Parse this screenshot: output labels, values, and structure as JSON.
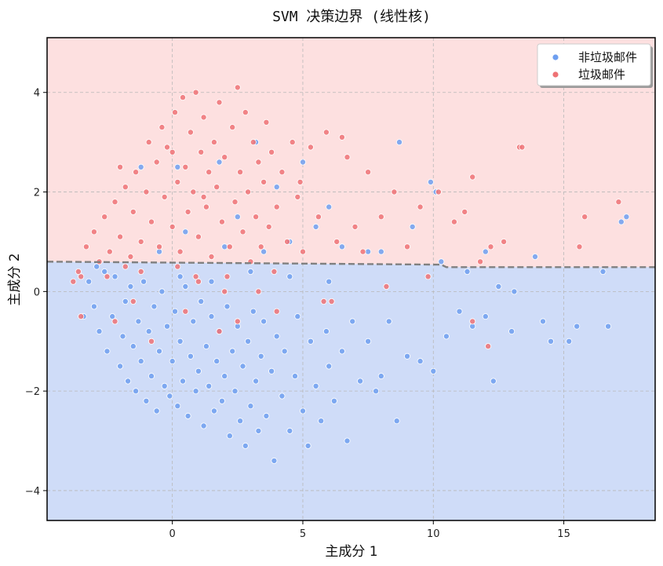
{
  "chart_data": {
    "type": "scatter",
    "title": "SVM 决策边界 (线性核)",
    "xlabel": "主成分 1",
    "ylabel": "主成分 2",
    "xlim": [
      -4.8,
      18.5
    ],
    "ylim": [
      -4.6,
      5.1
    ],
    "xticks": [
      0,
      5,
      10,
      15
    ],
    "yticks": [
      -4,
      -2,
      0,
      2,
      4
    ],
    "grid": true,
    "legend_position": "top-right",
    "regions": [
      {
        "label": "非垃圾邮件",
        "color": "#cfdcf8",
        "side": "below"
      },
      {
        "label": "垃圾邮件",
        "color": "#fde0e0",
        "side": "above"
      }
    ],
    "boundary": {
      "style": "dashed",
      "color": "#808080",
      "points": [
        [
          -4.8,
          0.6
        ],
        [
          10.3,
          0.54
        ],
        [
          10.5,
          0.49
        ],
        [
          18.5,
          0.49
        ]
      ]
    },
    "series": [
      {
        "name": "非垃圾邮件",
        "color": "#6e9ff0",
        "points": [
          [
            -3.2,
            0.2
          ],
          [
            -3.0,
            -0.3
          ],
          [
            -2.8,
            -0.8
          ],
          [
            -2.6,
            0.4
          ],
          [
            -2.5,
            -1.2
          ],
          [
            -2.3,
            -0.5
          ],
          [
            -2.2,
            0.3
          ],
          [
            -2.0,
            -1.5
          ],
          [
            -1.9,
            -0.9
          ],
          [
            -1.8,
            -0.2
          ],
          [
            -1.7,
            -1.8
          ],
          [
            -1.6,
            0.1
          ],
          [
            -1.5,
            -1.1
          ],
          [
            -1.4,
            -2.0
          ],
          [
            -1.3,
            -0.6
          ],
          [
            -1.2,
            -1.4
          ],
          [
            -1.1,
            0.2
          ],
          [
            -1.0,
            -2.2
          ],
          [
            -0.9,
            -0.8
          ],
          [
            -0.8,
            -1.7
          ],
          [
            -0.7,
            -0.3
          ],
          [
            -0.6,
            -2.4
          ],
          [
            -0.5,
            -1.2
          ],
          [
            -0.4,
            0.0
          ],
          [
            -0.3,
            -1.9
          ],
          [
            -0.2,
            -0.7
          ],
          [
            -0.1,
            -2.1
          ],
          [
            0.0,
            -1.4
          ],
          [
            0.1,
            -0.4
          ],
          [
            0.2,
            -2.3
          ],
          [
            0.3,
            -1.0
          ],
          [
            0.4,
            -1.8
          ],
          [
            0.5,
            0.1
          ],
          [
            0.6,
            -2.5
          ],
          [
            0.7,
            -1.3
          ],
          [
            0.8,
            -0.6
          ],
          [
            0.9,
            -2.0
          ],
          [
            1.0,
            -1.6
          ],
          [
            1.1,
            -0.2
          ],
          [
            1.2,
            -2.7
          ],
          [
            1.3,
            -1.1
          ],
          [
            1.4,
            -1.9
          ],
          [
            1.5,
            -0.5
          ],
          [
            1.6,
            -2.4
          ],
          [
            1.7,
            -1.4
          ],
          [
            1.8,
            -0.8
          ],
          [
            1.9,
            -2.2
          ],
          [
            2.0,
            -1.7
          ],
          [
            2.1,
            -0.3
          ],
          [
            2.2,
            -2.9
          ],
          [
            2.3,
            -1.2
          ],
          [
            2.4,
            -2.0
          ],
          [
            2.5,
            -0.7
          ],
          [
            2.6,
            -2.6
          ],
          [
            2.7,
            -1.5
          ],
          [
            2.8,
            -3.1
          ],
          [
            2.9,
            -1.0
          ],
          [
            3.0,
            -2.3
          ],
          [
            3.1,
            -0.4
          ],
          [
            3.2,
            -1.8
          ],
          [
            3.3,
            -2.8
          ],
          [
            3.4,
            -1.3
          ],
          [
            3.5,
            -0.6
          ],
          [
            3.6,
            -2.5
          ],
          [
            3.8,
            -1.6
          ],
          [
            3.9,
            -3.4
          ],
          [
            4.0,
            -0.9
          ],
          [
            4.2,
            -2.1
          ],
          [
            4.3,
            -1.2
          ],
          [
            4.5,
            -2.8
          ],
          [
            4.7,
            -1.7
          ],
          [
            4.8,
            -0.5
          ],
          [
            5.0,
            -2.4
          ],
          [
            5.2,
            -3.1
          ],
          [
            5.3,
            -1.0
          ],
          [
            5.5,
            -1.9
          ],
          [
            5.7,
            -2.6
          ],
          [
            5.9,
            -0.8
          ],
          [
            6.0,
            -1.5
          ],
          [
            6.2,
            -2.2
          ],
          [
            6.5,
            -1.2
          ],
          [
            6.7,
            -3.0
          ],
          [
            6.9,
            -0.6
          ],
          [
            7.2,
            -1.8
          ],
          [
            7.5,
            -1.0
          ],
          [
            7.8,
            -2.0
          ],
          [
            8.0,
            -1.7
          ],
          [
            8.3,
            -0.6
          ],
          [
            8.6,
            -2.6
          ],
          [
            9.0,
            -1.3
          ],
          [
            9.5,
            -1.4
          ],
          [
            10.0,
            -1.6
          ],
          [
            10.5,
            -0.9
          ],
          [
            11.0,
            -0.4
          ],
          [
            11.5,
            -0.7
          ],
          [
            12.0,
            -0.5
          ],
          [
            12.3,
            -1.8
          ],
          [
            13.0,
            -0.8
          ],
          [
            14.2,
            -0.6
          ],
          [
            14.5,
            -1.0
          ],
          [
            15.2,
            -1.0
          ],
          [
            15.5,
            -0.7
          ],
          [
            16.7,
            -0.7
          ],
          [
            0.3,
            0.3
          ],
          [
            1.5,
            0.2
          ],
          [
            3.0,
            0.4
          ],
          [
            4.5,
            0.3
          ],
          [
            6.0,
            0.2
          ],
          [
            -2.9,
            0.5
          ],
          [
            -3.4,
            -0.5
          ],
          [
            -0.5,
            0.8
          ],
          [
            0.5,
            1.2
          ],
          [
            2.5,
            1.5
          ],
          [
            4.0,
            2.1
          ],
          [
            5.0,
            2.6
          ],
          [
            6.0,
            1.7
          ],
          [
            8.7,
            3.0
          ],
          [
            9.9,
            2.2
          ],
          [
            10.1,
            2.0
          ],
          [
            13.9,
            0.7
          ],
          [
            17.2,
            1.4
          ],
          [
            17.4,
            1.5
          ],
          [
            7.5,
            0.8
          ],
          [
            9.2,
            1.3
          ],
          [
            10.3,
            0.6
          ],
          [
            11.3,
            0.4
          ],
          [
            12.5,
            0.1
          ],
          [
            13.1,
            0.0
          ],
          [
            16.5,
            0.4
          ],
          [
            4.5,
            1.0
          ],
          [
            5.5,
            1.3
          ],
          [
            3.5,
            0.8
          ],
          [
            2.0,
            0.9
          ],
          [
            6.5,
            0.9
          ],
          [
            8.0,
            0.8
          ],
          [
            12.0,
            0.8
          ],
          [
            0.2,
            2.5
          ],
          [
            1.8,
            2.6
          ],
          [
            3.2,
            3.0
          ],
          [
            -1.2,
            2.5
          ]
        ]
      },
      {
        "name": "垃圾邮件",
        "color": "#ee7275",
        "points": [
          [
            -3.5,
            0.3
          ],
          [
            -3.3,
            0.9
          ],
          [
            -3.0,
            1.2
          ],
          [
            -2.8,
            0.6
          ],
          [
            -2.6,
            1.5
          ],
          [
            -2.4,
            0.8
          ],
          [
            -2.2,
            1.8
          ],
          [
            -2.0,
            1.1
          ],
          [
            -1.8,
            2.1
          ],
          [
            -1.6,
            0.7
          ],
          [
            -1.5,
            1.6
          ],
          [
            -1.4,
            2.4
          ],
          [
            -1.2,
            1.0
          ],
          [
            -1.0,
            2.0
          ],
          [
            -0.9,
            3.0
          ],
          [
            -0.8,
            1.4
          ],
          [
            -0.6,
            2.6
          ],
          [
            -0.5,
            0.9
          ],
          [
            -0.4,
            3.3
          ],
          [
            -0.3,
            1.9
          ],
          [
            -0.2,
            2.9
          ],
          [
            0.0,
            1.3
          ],
          [
            0.1,
            3.6
          ],
          [
            0.2,
            2.2
          ],
          [
            0.3,
            0.8
          ],
          [
            0.4,
            3.9
          ],
          [
            0.5,
            2.5
          ],
          [
            0.6,
            1.6
          ],
          [
            0.7,
            3.2
          ],
          [
            0.8,
            2.0
          ],
          [
            0.9,
            4.0
          ],
          [
            1.0,
            1.1
          ],
          [
            1.1,
            2.8
          ],
          [
            1.2,
            3.5
          ],
          [
            1.3,
            1.7
          ],
          [
            1.4,
            2.4
          ],
          [
            1.5,
            0.7
          ],
          [
            1.6,
            3.0
          ],
          [
            1.7,
            2.1
          ],
          [
            1.8,
            3.8
          ],
          [
            1.9,
            1.4
          ],
          [
            2.0,
            2.7
          ],
          [
            2.2,
            0.9
          ],
          [
            2.3,
            3.3
          ],
          [
            2.4,
            1.8
          ],
          [
            2.5,
            4.1
          ],
          [
            2.6,
            2.4
          ],
          [
            2.7,
            1.2
          ],
          [
            2.8,
            3.6
          ],
          [
            2.9,
            2.0
          ],
          [
            3.0,
            0.6
          ],
          [
            3.1,
            3.0
          ],
          [
            3.2,
            1.5
          ],
          [
            3.3,
            2.6
          ],
          [
            3.4,
            0.9
          ],
          [
            3.5,
            2.2
          ],
          [
            3.6,
            3.4
          ],
          [
            3.7,
            1.3
          ],
          [
            3.8,
            2.8
          ],
          [
            4.0,
            1.7
          ],
          [
            4.2,
            2.4
          ],
          [
            4.4,
            1.0
          ],
          [
            4.6,
            3.0
          ],
          [
            4.8,
            1.9
          ],
          [
            5.0,
            0.8
          ],
          [
            5.3,
            2.9
          ],
          [
            5.6,
            1.5
          ],
          [
            5.9,
            3.2
          ],
          [
            6.3,
            1.0
          ],
          [
            6.7,
            2.7
          ],
          [
            7.0,
            1.3
          ],
          [
            7.5,
            2.4
          ],
          [
            8.0,
            1.5
          ],
          [
            8.5,
            2.0
          ],
          [
            9.0,
            0.9
          ],
          [
            9.5,
            1.7
          ],
          [
            10.2,
            2.0
          ],
          [
            10.8,
            1.4
          ],
          [
            11.5,
            2.3
          ],
          [
            12.2,
            0.9
          ],
          [
            13.3,
            2.9
          ],
          [
            13.4,
            2.9
          ],
          [
            15.6,
            0.9
          ],
          [
            15.8,
            1.5
          ],
          [
            17.1,
            1.8
          ],
          [
            5.8,
            -0.2
          ],
          [
            6.1,
            -0.2
          ],
          [
            8.2,
            0.1
          ],
          [
            11.5,
            -0.6
          ],
          [
            12.1,
            -1.1
          ],
          [
            -0.8,
            -1.0
          ],
          [
            0.5,
            -0.4
          ],
          [
            1.8,
            -0.8
          ],
          [
            -2.2,
            -0.6
          ],
          [
            -3.5,
            -0.5
          ],
          [
            2.5,
            -0.6
          ],
          [
            4.0,
            -0.4
          ],
          [
            3.3,
            0.0
          ],
          [
            -1.5,
            -0.2
          ],
          [
            0.9,
            0.3
          ],
          [
            -2.5,
            0.3
          ],
          [
            -1.2,
            0.4
          ],
          [
            0.2,
            0.5
          ],
          [
            1.0,
            0.2
          ],
          [
            2.0,
            0.0
          ],
          [
            -3.8,
            0.2
          ],
          [
            -3.6,
            0.4
          ],
          [
            -2.0,
            2.5
          ],
          [
            -1.8,
            0.5
          ],
          [
            0.0,
            2.8
          ],
          [
            1.2,
            1.9
          ],
          [
            2.1,
            0.3
          ],
          [
            3.9,
            0.4
          ],
          [
            4.9,
            2.2
          ],
          [
            6.5,
            3.1
          ],
          [
            7.3,
            0.8
          ],
          [
            9.8,
            0.3
          ],
          [
            11.2,
            1.6
          ],
          [
            11.8,
            0.6
          ],
          [
            12.7,
            1.0
          ]
        ]
      }
    ]
  }
}
